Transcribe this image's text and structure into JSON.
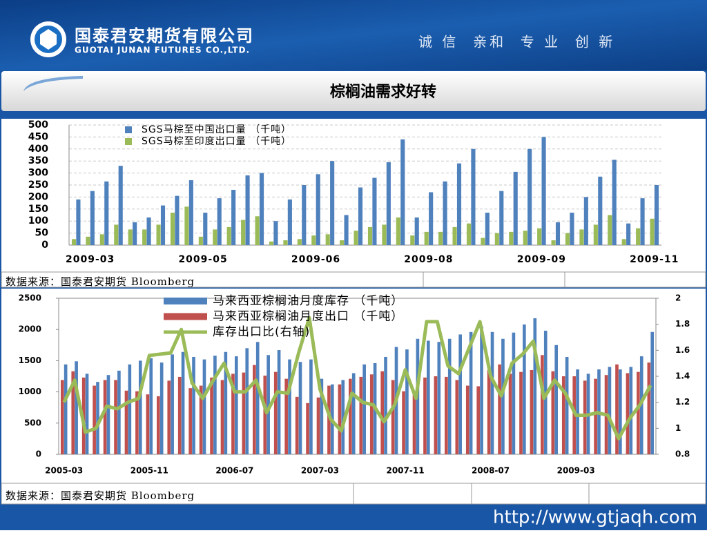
{
  "header": {
    "company": "国泰君安期货有限公司",
    "company_en": "GUOTAI JUNAN FUTURES CO.,LTD.",
    "slogan": "诚 信  亲和  专 业  创 新"
  },
  "title": "棕榈油需求好转",
  "footer": "http://www.gtjaqh.com",
  "chart_data": [
    {
      "type": "bar",
      "source": "数据来源：国泰君安期货 Bloomberg",
      "grid": true,
      "categories": [
        null,
        "2009-03",
        null,
        null,
        null,
        null,
        null,
        null,
        null,
        "2009-05",
        null,
        null,
        null,
        null,
        null,
        null,
        null,
        "2009-06",
        null,
        null,
        null,
        null,
        null,
        null,
        null,
        "2009-08",
        null,
        null,
        null,
        null,
        null,
        null,
        null,
        "2009-09",
        null,
        null,
        null,
        null,
        null,
        null,
        null,
        "2009-11"
      ],
      "series": [
        {
          "name": "SGS马棕至中国出口量 （千吨）",
          "color": "#4f81bd",
          "values": [
            190,
            225,
            265,
            330,
            95,
            115,
            165,
            205,
            270,
            135,
            195,
            230,
            290,
            300,
            100,
            190,
            250,
            295,
            350,
            125,
            240,
            280,
            345,
            440,
            115,
            220,
            265,
            340,
            400,
            135,
            225,
            305,
            400,
            450,
            95,
            135,
            200,
            285,
            355,
            90,
            195,
            250
          ]
        },
        {
          "name": "SGS马棕至印度出口量 （千吨）",
          "color": "#9bbb59",
          "values": [
            25,
            35,
            45,
            85,
            65,
            65,
            85,
            135,
            160,
            35,
            65,
            75,
            105,
            120,
            15,
            20,
            25,
            40,
            45,
            20,
            60,
            75,
            85,
            115,
            40,
            55,
            55,
            75,
            90,
            30,
            50,
            55,
            60,
            70,
            20,
            50,
            65,
            85,
            125,
            25,
            70,
            110
          ]
        }
      ],
      "ylim": [
        0,
        500
      ],
      "yticks": [
        0,
        50,
        100,
        150,
        200,
        250,
        300,
        350,
        400,
        450,
        500
      ]
    },
    {
      "type": "bar-line",
      "source": "数据来源：国泰君安期货 Bloomberg",
      "categories": [
        "2005-03",
        null,
        null,
        null,
        null,
        null,
        null,
        null,
        "2005-11",
        null,
        null,
        null,
        null,
        null,
        null,
        null,
        "2006-07",
        null,
        null,
        null,
        null,
        null,
        null,
        null,
        "2007-03",
        null,
        null,
        null,
        null,
        null,
        null,
        null,
        "2007-11",
        null,
        null,
        null,
        null,
        null,
        null,
        null,
        "2008-07",
        null,
        null,
        null,
        null,
        null,
        null,
        null,
        "2009-03",
        null,
        null,
        null,
        null,
        null,
        null,
        null
      ],
      "series": [
        {
          "name": "马来西亚棕榈油月度库存 （千吨）",
          "color": "#4f81bd",
          "values": [
            1440,
            1490,
            1290,
            1160,
            1270,
            1340,
            1440,
            1500,
            1540,
            1470,
            1600,
            1640,
            1560,
            1520,
            1580,
            1640,
            1570,
            1700,
            1800,
            1590,
            1670,
            1520,
            1480,
            1520,
            1210,
            1120,
            1190,
            1300,
            1440,
            1460,
            1560,
            1720,
            1680,
            1850,
            1820,
            1800,
            1850,
            1920,
            1960,
            2050,
            1960,
            1850,
            1950,
            2080,
            2180,
            1980,
            1750,
            1560,
            1360,
            1290,
            1360,
            1400,
            1360,
            1400,
            1570,
            1960
          ]
        },
        {
          "name": "马来西亚棕榈油月度出口 （千吨）",
          "color": "#c0504d",
          "values": [
            1190,
            1330,
            1230,
            1100,
            1190,
            1190,
            1020,
            1010,
            960,
            930,
            1180,
            1240,
            1060,
            1100,
            1230,
            1190,
            1290,
            1310,
            1430,
            1260,
            1320,
            1210,
            920,
            820,
            910,
            1100,
            1120,
            1210,
            1240,
            1280,
            1330,
            1190,
            1010,
            1000,
            1230,
            1250,
            1240,
            1190,
            1100,
            1090,
            1350,
            1440,
            1290,
            1320,
            1350,
            1590,
            1330,
            1250,
            1250,
            1180,
            1210,
            1270,
            1440,
            1300,
            1320,
            1470
          ]
        },
        {
          "name": "库存出口比(右轴)",
          "color": "#9bbb59",
          "axis": "y2",
          "values": [
            1.2,
            1.37,
            0.97,
            1.0,
            1.17,
            1.15,
            1.2,
            1.23,
            1.56,
            1.57,
            1.58,
            1.76,
            1.35,
            1.23,
            1.37,
            1.5,
            1.28,
            1.28,
            1.37,
            1.12,
            1.28,
            1.27,
            1.58,
            1.85,
            1.3,
            1.07,
            0.98,
            1.27,
            1.2,
            1.18,
            1.05,
            1.18,
            1.45,
            1.23,
            1.82,
            1.82,
            1.48,
            1.42,
            1.62,
            1.82,
            1.4,
            1.25,
            1.5,
            1.57,
            1.67,
            1.23,
            1.37,
            1.27,
            1.1,
            1.1,
            1.12,
            1.1,
            0.92,
            1.07,
            1.18,
            1.33
          ]
        }
      ],
      "ylim": [
        0,
        2500
      ],
      "yticks": [
        0,
        500,
        1000,
        1500,
        2000,
        2500
      ],
      "y2lim": [
        0.8,
        2
      ],
      "y2ticks": [
        0.8,
        1,
        1.2,
        1.4,
        1.6,
        1.8,
        2
      ]
    }
  ]
}
